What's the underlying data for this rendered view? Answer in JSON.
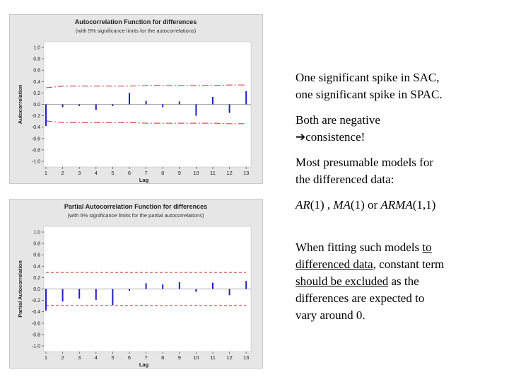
{
  "charts": [
    {
      "title": "Autocorrelation Function for differences",
      "subtitle": "(with 5% significance limits for the autocorrelations)",
      "ylabel": "Autocorrelation",
      "xlabel": "Lag",
      "limit_style": "dashdot"
    },
    {
      "title": "Partial Autocorrelation Function for differences",
      "subtitle": "(with 5% significance limits for the partial autocorrelations)",
      "ylabel": "Partial Autocorrelation",
      "xlabel": "Lag",
      "limit_style": "dashed"
    }
  ],
  "chart_data": [
    {
      "type": "bar",
      "title": "Autocorrelation Function for differences",
      "subtitle": "(with 5% significance limits for the autocorrelations)",
      "xlabel": "Lag",
      "ylabel": "Autocorrelation",
      "categories": [
        1,
        2,
        3,
        4,
        5,
        6,
        7,
        8,
        9,
        10,
        11,
        12,
        13
      ],
      "values": [
        -0.38,
        -0.05,
        -0.03,
        -0.1,
        -0.03,
        0.2,
        0.06,
        -0.05,
        0.05,
        -0.2,
        0.13,
        -0.15,
        0.23
      ],
      "upper_limit": [
        0.29,
        0.32,
        0.32,
        0.32,
        0.32,
        0.32,
        0.33,
        0.33,
        0.33,
        0.33,
        0.33,
        0.34,
        0.34
      ],
      "lower_limit": [
        -0.29,
        -0.32,
        -0.32,
        -0.32,
        -0.32,
        -0.32,
        -0.33,
        -0.33,
        -0.33,
        -0.33,
        -0.33,
        -0.34,
        -0.34
      ],
      "ylim": [
        -1.0,
        1.0
      ],
      "yticks": [
        "1.0",
        "0.8",
        "0.6",
        "0.4",
        "0.2",
        "0.0",
        "-0.2",
        "-0.4",
        "-0.6",
        "-0.8",
        "-1.0"
      ],
      "xticks": [
        "1",
        "2",
        "3",
        "4",
        "5",
        "6",
        "7",
        "8",
        "9",
        "10",
        "11",
        "12",
        "13"
      ],
      "colors": {
        "bars": "#1f1fc4",
        "limits": "#c83232",
        "zero": "#555555"
      }
    },
    {
      "type": "bar",
      "title": "Partial Autocorrelation Function for differences",
      "subtitle": "(with 5% significance limits for the partial autocorrelations)",
      "xlabel": "Lag",
      "ylabel": "Partial Autocorrelation",
      "categories": [
        1,
        2,
        3,
        4,
        5,
        6,
        7,
        8,
        9,
        10,
        11,
        12,
        13
      ],
      "values": [
        -0.38,
        -0.22,
        -0.17,
        -0.19,
        -0.28,
        -0.03,
        0.1,
        0.08,
        0.12,
        -0.05,
        0.11,
        -0.11,
        0.14
      ],
      "upper_limit": [
        0.29,
        0.29,
        0.29,
        0.29,
        0.29,
        0.29,
        0.29,
        0.29,
        0.29,
        0.29,
        0.29,
        0.29,
        0.29
      ],
      "lower_limit": [
        -0.29,
        -0.29,
        -0.29,
        -0.29,
        -0.29,
        -0.29,
        -0.29,
        -0.29,
        -0.29,
        -0.29,
        -0.29,
        -0.29,
        -0.29
      ],
      "ylim": [
        -1.0,
        1.0
      ],
      "yticks": [
        "1.0",
        "0.8",
        "0.6",
        "0.4",
        "0.2",
        "0.0",
        "-0.2",
        "-0.4",
        "-0.6",
        "-0.8",
        "-1.0"
      ],
      "xticks": [
        "1",
        "2",
        "3",
        "4",
        "5",
        "6",
        "7",
        "8",
        "9",
        "10",
        "11",
        "12",
        "13"
      ],
      "colors": {
        "bars": "#1f1fc4",
        "limits": "#c83232",
        "zero": "#555555"
      }
    }
  ],
  "notes": {
    "p1_line1": "One significant spike in SAC,",
    "p1_line2": "one significant spike in SPAC.",
    "p2_line1": "Both are negative",
    "p2_arrow": "➔",
    "p2_line2": "consistence!",
    "p3_line1": "Most presumable models for",
    "p3_line2": "the differenced data:",
    "p4_ar": "AR",
    "p4_ar_arg": "(1) , ",
    "p4_ma": "MA",
    "p4_ma_arg": "(1) or ",
    "p4_arma": "ARMA",
    "p4_arma_arg": "(1,1)",
    "p5_t1": "When fitting such models ",
    "p5_u1": "to",
    "p5_u2": "differenced data",
    "p5_t2": ", constant term",
    "p5_u3": "should be excluded",
    "p5_t3": " as the",
    "p5_t4": "differences are expected to",
    "p5_t5": "vary around 0."
  }
}
